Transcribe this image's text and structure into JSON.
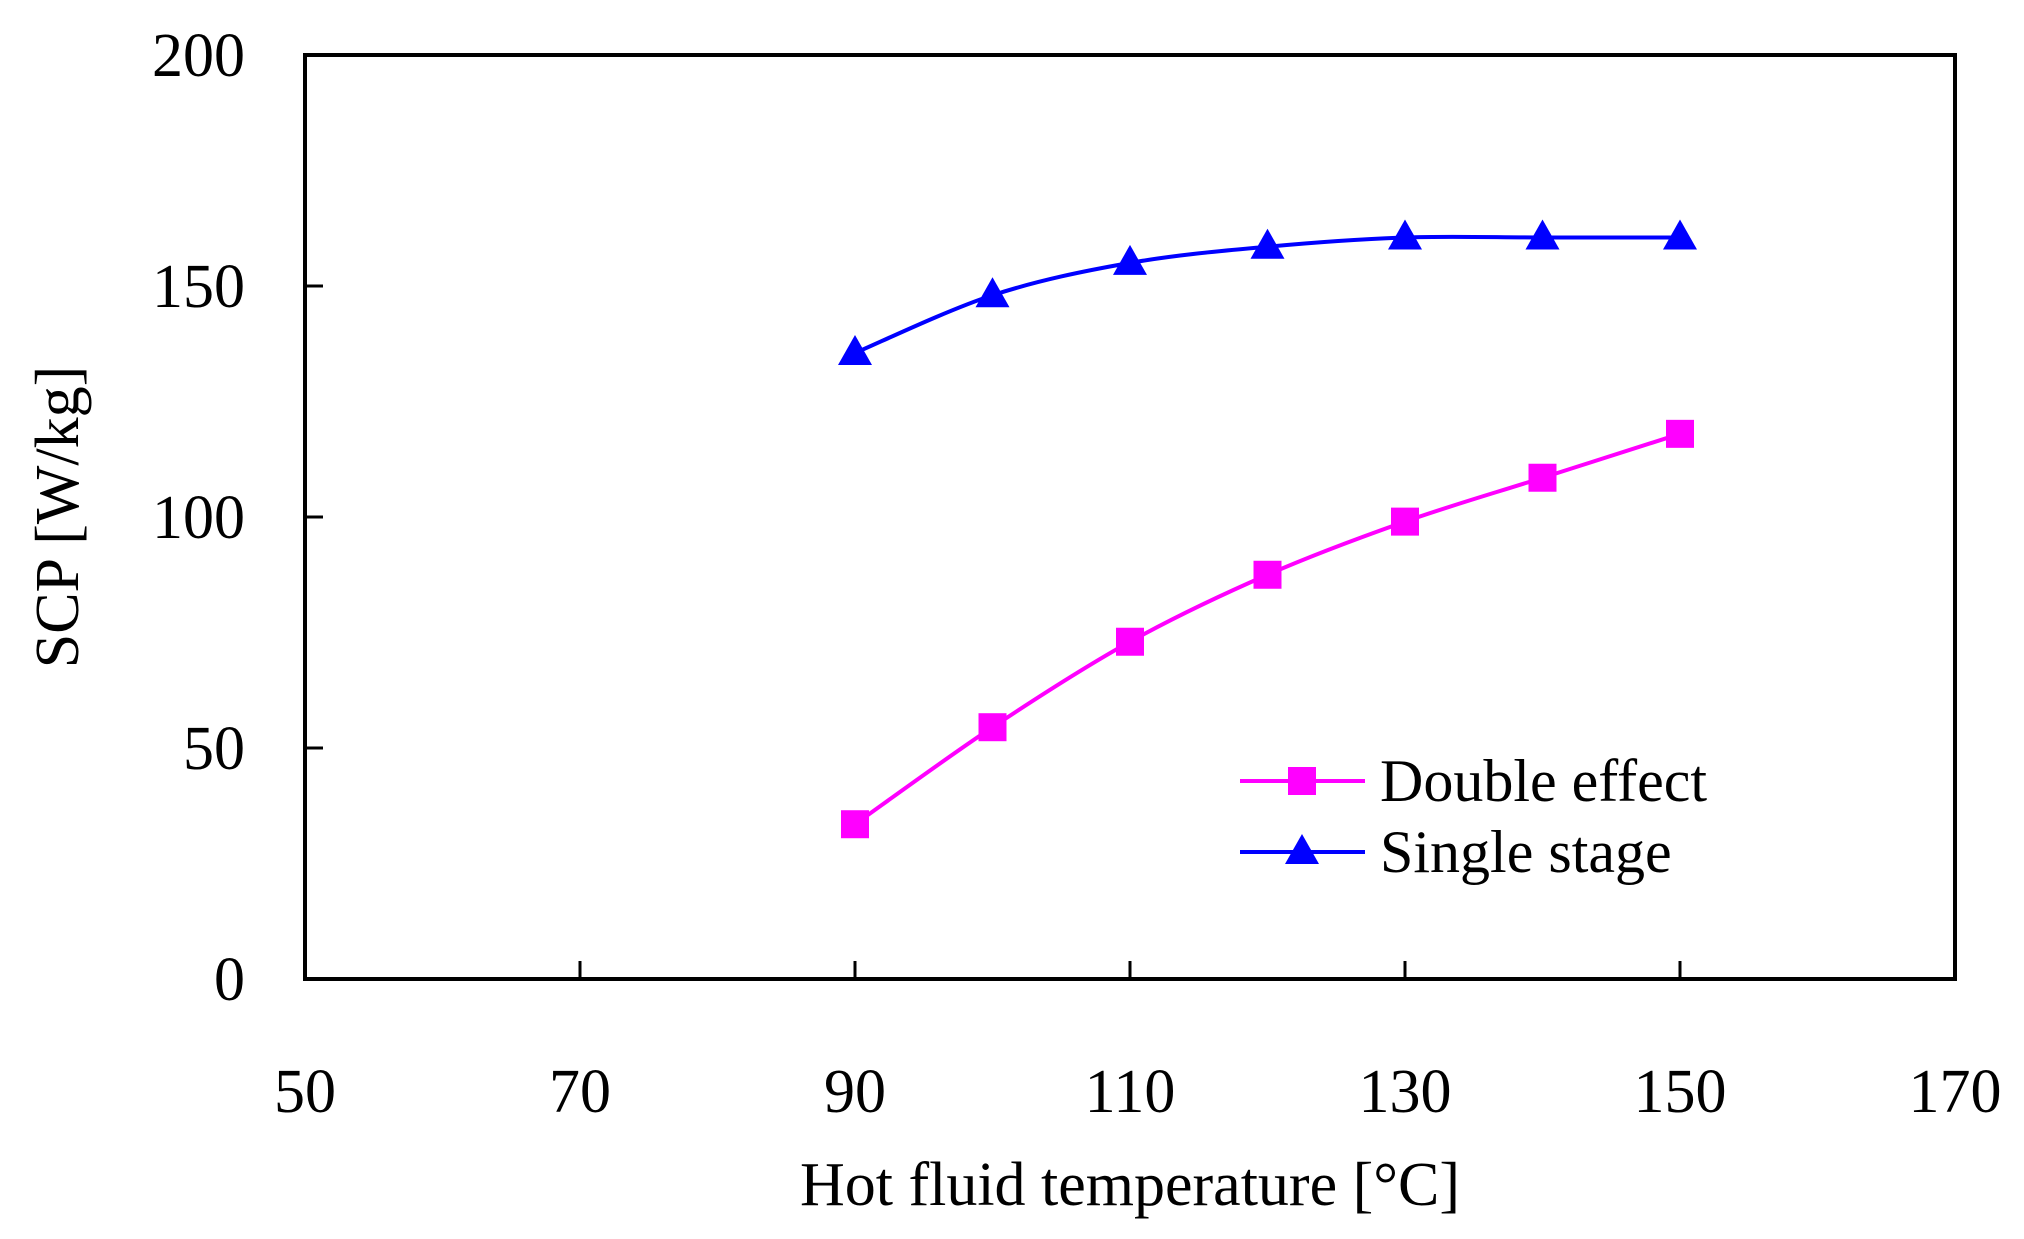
{
  "chart_data": {
    "type": "line",
    "title": "",
    "xlabel": "Hot fluid temperature [°C]",
    "ylabel": "SCP [W/kg]",
    "xlim": [
      50,
      170
    ],
    "ylim": [
      0,
      200
    ],
    "xticks": [
      50,
      70,
      90,
      110,
      130,
      150,
      170
    ],
    "yticks": [
      0,
      50,
      100,
      150,
      200
    ],
    "grid": false,
    "legend_position": "bottom-right",
    "series": [
      {
        "name": "Double effect",
        "marker": "square",
        "color": "#ff00ff",
        "x": [
          90,
          100,
          110,
          120,
          130,
          140,
          150
        ],
        "y": [
          33.5,
          54.5,
          73,
          87.5,
          99,
          108.5,
          118
        ]
      },
      {
        "name": "Single stage",
        "marker": "triangle",
        "color": "#0000ff",
        "x": [
          90,
          100,
          110,
          120,
          130,
          140,
          150
        ],
        "y": [
          135.5,
          148,
          155,
          158.5,
          160.5,
          160.5,
          160.5
        ]
      }
    ]
  }
}
